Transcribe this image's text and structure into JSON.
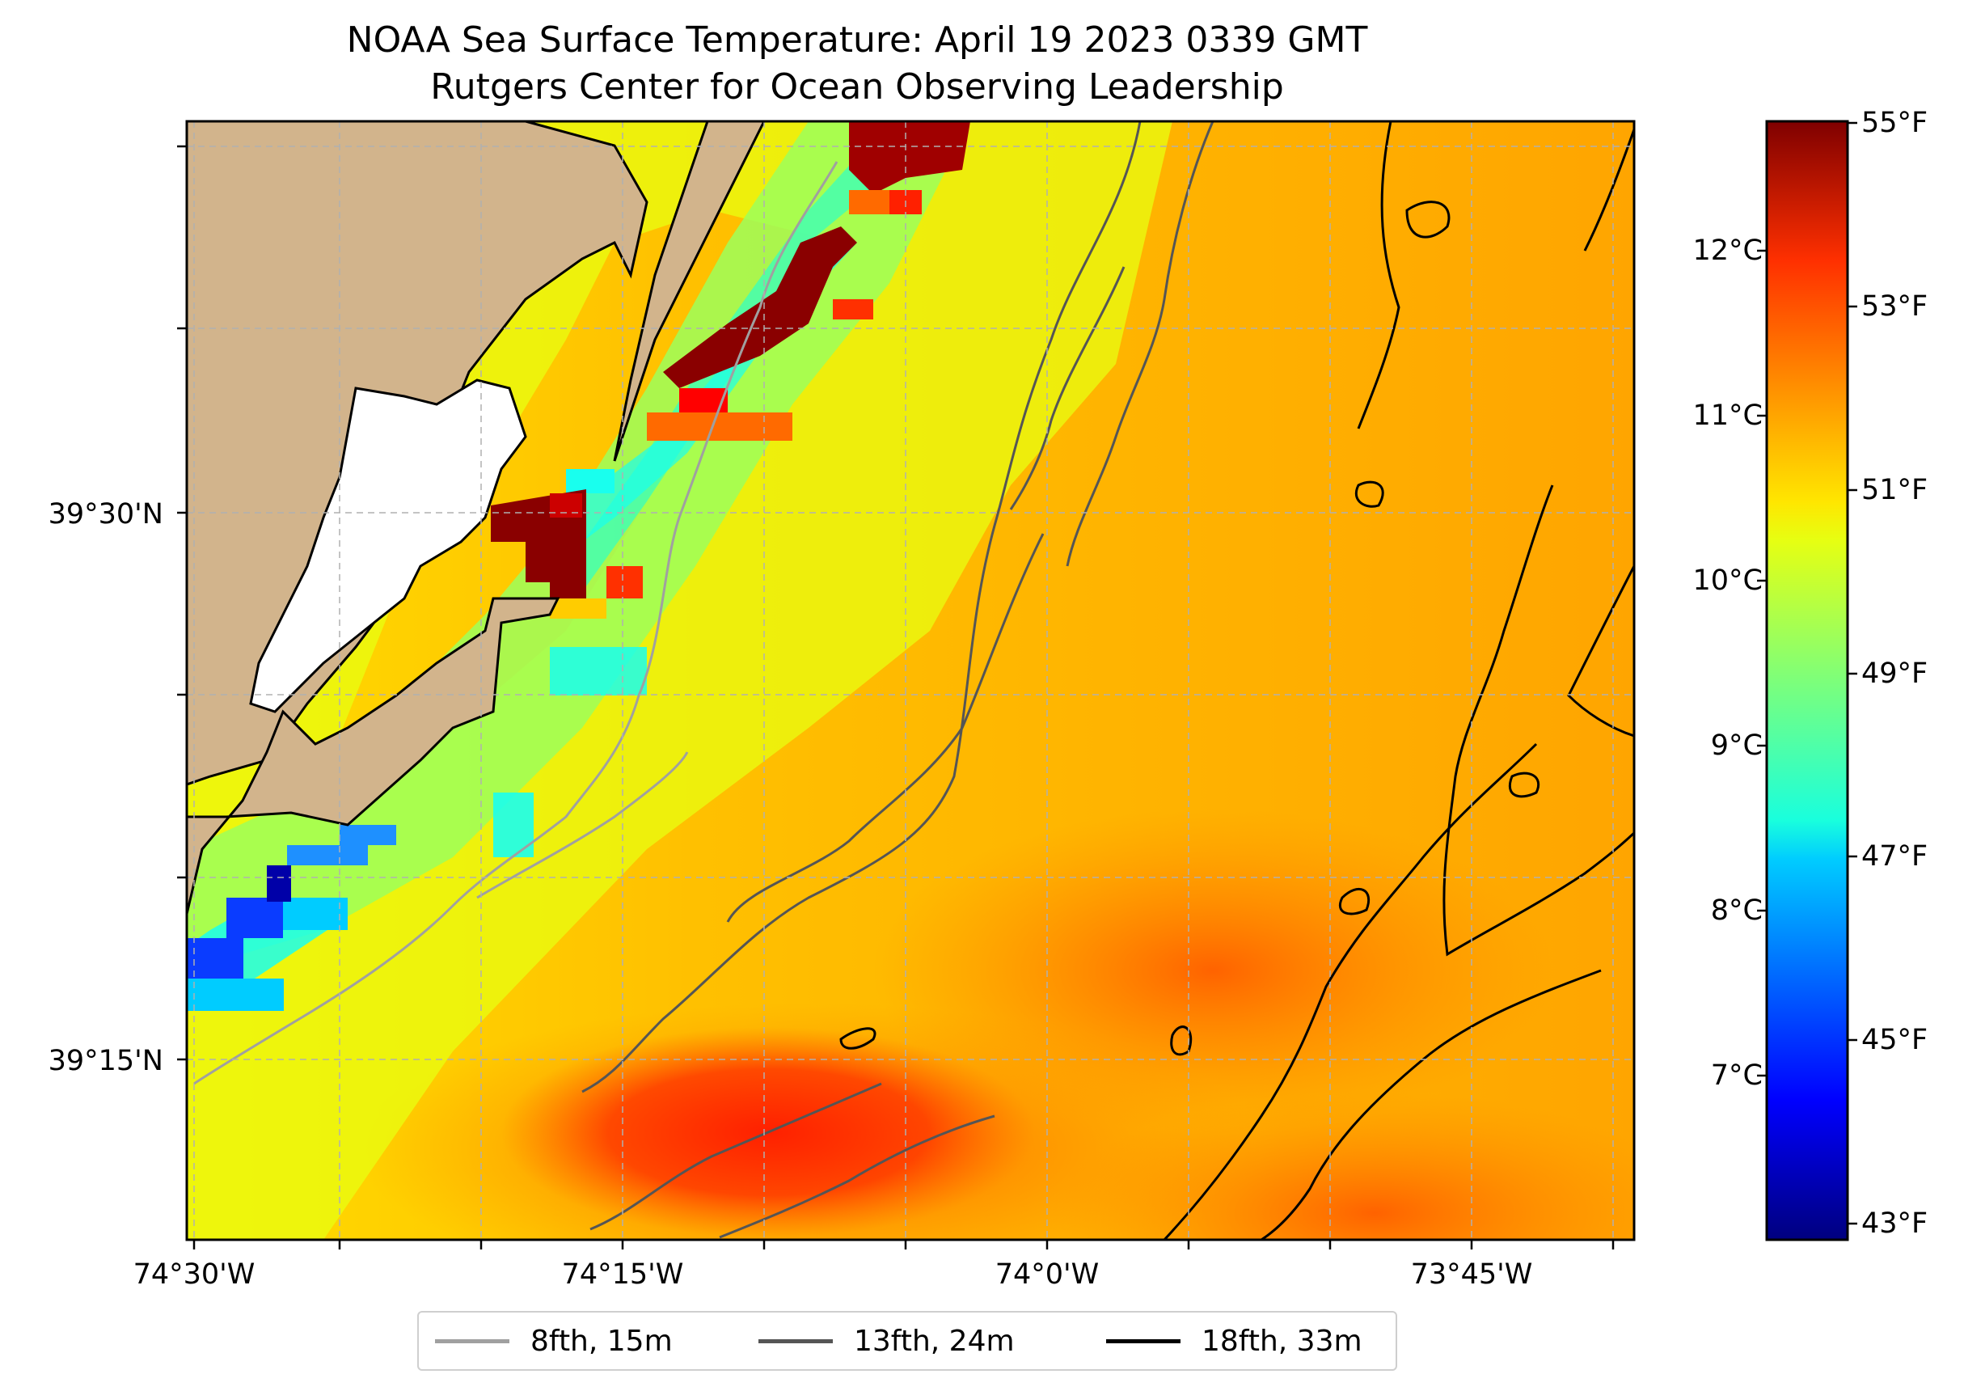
{
  "title": {
    "line1": "NOAA Sea Surface Temperature: April 19 2023 0339 GMT",
    "line2": "Rutgers Center for Ocean Observing Leadership"
  },
  "axes": {
    "lat_labels": [
      "39°30'N",
      "39°15'N"
    ],
    "lon_labels": [
      "74°30'W",
      "74°15'W",
      "74°0'W",
      "73°45'W"
    ]
  },
  "colorbar": {
    "fahrenheit_labels": [
      "55°F",
      "53°F",
      "51°F",
      "49°F",
      "47°F",
      "45°F",
      "43°F"
    ],
    "celsius_labels": [
      "12°C",
      "11°C",
      "10°C",
      "9°C",
      "8°C",
      "7°C"
    ],
    "range_f": [
      42.8,
      55.0
    ],
    "colormap": "jet"
  },
  "legend": {
    "items": [
      {
        "label": "8fth, 15m",
        "color": "#a0a0a0"
      },
      {
        "label": "13fth, 24m",
        "color": "#555555"
      },
      {
        "label": "18fth, 33m",
        "color": "#000000"
      }
    ]
  },
  "colors": {
    "land": "#d2b48c",
    "coast": "#000000",
    "grid": "#b0b0b0"
  }
}
